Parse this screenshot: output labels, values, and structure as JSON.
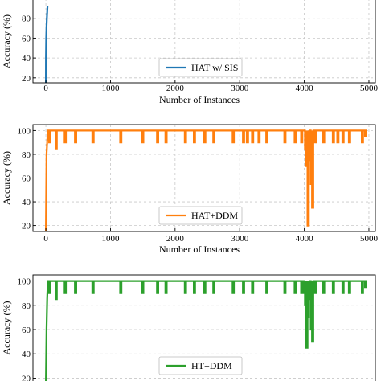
{
  "chart_data": [
    {
      "type": "line",
      "title": "",
      "xlabel": "Number of Instances",
      "ylabel": "Accuracy (%)",
      "xlim": [
        -200,
        5100
      ],
      "ylim": [
        15,
        100
      ],
      "xticks": [
        0,
        1000,
        2000,
        3000,
        4000,
        5000
      ],
      "yticks": [
        20,
        40,
        60,
        80
      ],
      "grid": true,
      "legend_position": "bottom-center",
      "series": [
        {
          "name": "HAT w/ SIS",
          "color": "#1f77b4",
          "x": [
            0,
            1,
            5,
            10,
            15,
            20,
            25
          ],
          "y": [
            15,
            40,
            60,
            72,
            80,
            86,
            92
          ]
        }
      ]
    },
    {
      "type": "line",
      "title": "",
      "xlabel": "Number of Instances",
      "ylabel": "Accuracy (%)",
      "xlim": [
        -200,
        5100
      ],
      "ylim": [
        15,
        105
      ],
      "xticks": [
        0,
        1000,
        2000,
        3000,
        4000,
        5000
      ],
      "yticks": [
        20,
        40,
        60,
        80,
        100
      ],
      "grid": true,
      "legend_position": "bottom-center",
      "series": [
        {
          "name": "HAT+DDM",
          "color": "#ff7f0e",
          "base": 100,
          "start": [
            [
              0,
              15
            ],
            [
              10,
              80
            ],
            [
              20,
              90
            ],
            [
              30,
              100
            ]
          ],
          "end_x": 4950,
          "dips": [
            [
              60,
              90
            ],
            [
              160,
              85
            ],
            [
              300,
              90
            ],
            [
              460,
              90
            ],
            [
              730,
              90
            ],
            [
              1160,
              90
            ],
            [
              1500,
              90
            ],
            [
              1730,
              90
            ],
            [
              1860,
              90
            ],
            [
              2160,
              90
            ],
            [
              2300,
              90
            ],
            [
              2460,
              90
            ],
            [
              2600,
              90
            ],
            [
              2900,
              90
            ],
            [
              3060,
              90
            ],
            [
              3120,
              90
            ],
            [
              3200,
              90
            ],
            [
              3300,
              90
            ],
            [
              3420,
              90
            ],
            [
              3700,
              90
            ],
            [
              3860,
              90
            ],
            [
              3960,
              90
            ],
            [
              4020,
              85
            ],
            [
              4040,
              70
            ],
            [
              4060,
              20
            ],
            [
              4080,
              75
            ],
            [
              4110,
              55
            ],
            [
              4130,
              35
            ],
            [
              4170,
              90
            ],
            [
              4300,
              90
            ],
            [
              4450,
              90
            ],
            [
              4520,
              90
            ],
            [
              4600,
              90
            ],
            [
              4700,
              90
            ],
            [
              4900,
              90
            ],
            [
              4950,
              95
            ]
          ]
        }
      ]
    },
    {
      "type": "line",
      "title": "",
      "xlabel": "",
      "ylabel": "Accuracy (%)",
      "xlim": [
        -200,
        5100
      ],
      "ylim": [
        15,
        105
      ],
      "xticks": [],
      "yticks": [
        20,
        40,
        60,
        80,
        100
      ],
      "grid": true,
      "legend_position": "bottom-center",
      "series": [
        {
          "name": "HT+DDM",
          "color": "#2ca02c",
          "base": 100,
          "start": [
            [
              0,
              15
            ],
            [
              10,
              60
            ],
            [
              20,
              85
            ],
            [
              30,
              100
            ]
          ],
          "end_x": 4950,
          "dips": [
            [
              60,
              90
            ],
            [
              160,
              85
            ],
            [
              300,
              90
            ],
            [
              460,
              90
            ],
            [
              730,
              90
            ],
            [
              1160,
              90
            ],
            [
              1500,
              90
            ],
            [
              1730,
              90
            ],
            [
              1860,
              90
            ],
            [
              2160,
              90
            ],
            [
              2300,
              90
            ],
            [
              2460,
              90
            ],
            [
              2600,
              90
            ],
            [
              2900,
              90
            ],
            [
              3060,
              90
            ],
            [
              3200,
              90
            ],
            [
              3420,
              90
            ],
            [
              3700,
              90
            ],
            [
              3860,
              90
            ],
            [
              3960,
              90
            ],
            [
              4000,
              90
            ],
            [
              4020,
              80
            ],
            [
              4040,
              45
            ],
            [
              4060,
              70
            ],
            [
              4080,
              85
            ],
            [
              4110,
              60
            ],
            [
              4130,
              50
            ],
            [
              4170,
              90
            ],
            [
              4300,
              90
            ],
            [
              4450,
              90
            ],
            [
              4600,
              90
            ],
            [
              4700,
              90
            ],
            [
              4900,
              90
            ],
            [
              4950,
              95
            ]
          ]
        }
      ]
    }
  ]
}
